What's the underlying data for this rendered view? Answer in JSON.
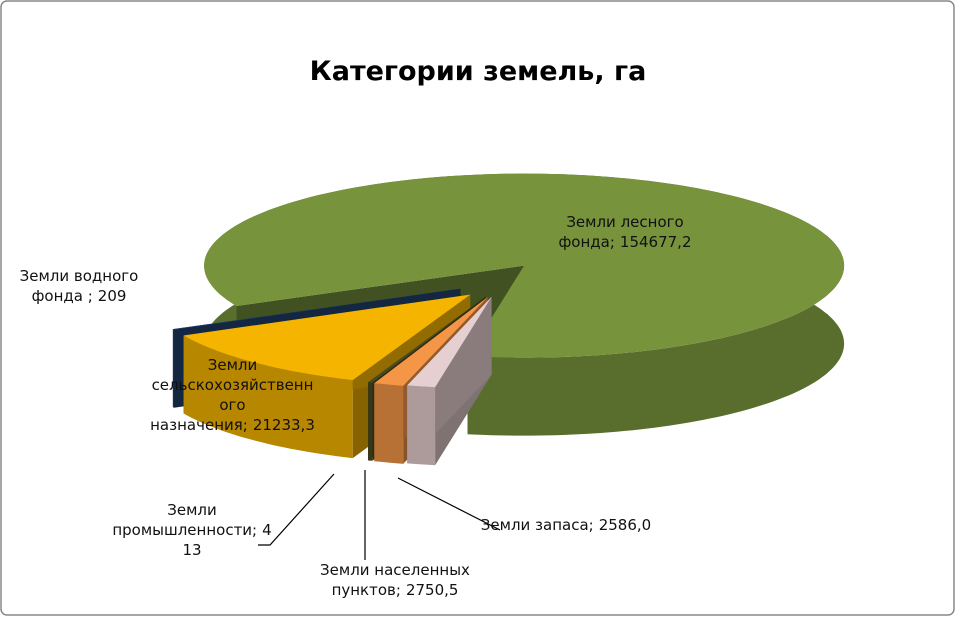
{
  "chart_data": {
    "type": "pie",
    "title": "Категории земель, га",
    "categories": [
      "Земли лесного фонда;",
      "Земли запаса;",
      "Земли населенных пунктов;",
      "Земли промышленности;",
      "Земли сельскохозяйственного назначения;",
      "Земли водного фонда ;"
    ],
    "values": [
      154677.2,
      2586.0,
      2750.5,
      413,
      21233.3,
      209
    ],
    "value_labels": [
      "154677,2",
      "2586,0",
      "2750,5",
      "413",
      "21233,3",
      "209"
    ],
    "colors": [
      "#77933c",
      "#e6cfd0",
      "#f59647",
      "#4a4a20",
      "#f4b400",
      "#1f3f6e"
    ]
  }
}
